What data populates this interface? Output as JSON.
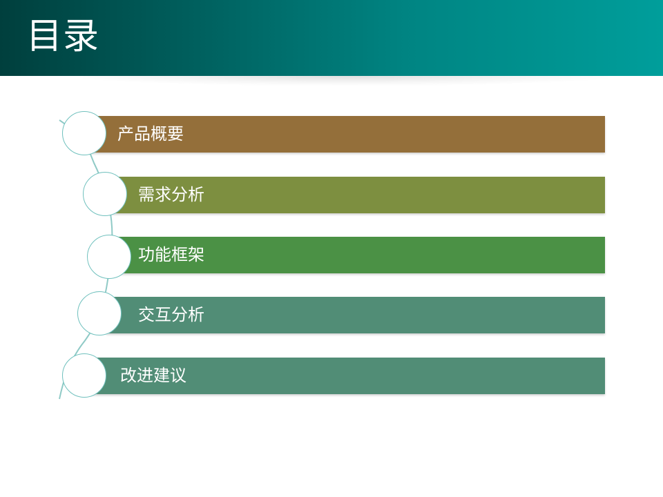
{
  "slide": {
    "title": "目录"
  },
  "menu": {
    "items": [
      {
        "label": "产品概要",
        "color": "#946f3a"
      },
      {
        "label": "需求分析",
        "color": "#7d8f40"
      },
      {
        "label": "功能框架",
        "color": "#4b9145"
      },
      {
        "label": "交互分析",
        "color": "#518d76"
      },
      {
        "label": "改进建议",
        "color": "#518d76"
      }
    ]
  },
  "colors": {
    "header_dark": "#003f3d",
    "header_light": "#009e9b",
    "circle_border": "#6fc0bd",
    "connector": "#8fcac6"
  }
}
